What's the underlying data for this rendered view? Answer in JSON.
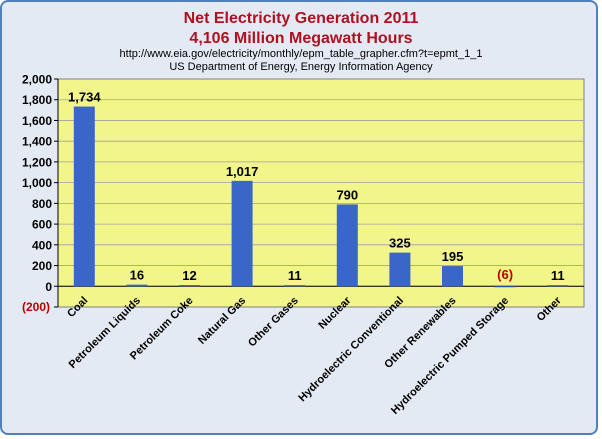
{
  "chart_data": {
    "type": "bar",
    "title": "Net Electricity Generation 2011",
    "subtitle": "4,106 Million Megawatt Hours",
    "source_url": "http://www.eia.gov/electricity/monthly/epm_table_grapher.cfm?t=epmt_1_1",
    "source_org": "US Department of Energy, Energy Information Agency",
    "categories": [
      "Coal",
      "Petroleum Liquids",
      "Petroleum Coke",
      "Natural Gas",
      "Other Gases",
      "Nuclear",
      "Hydroelectric Conventional",
      "Other Renewables",
      "Hydroelectric Pumped Storage",
      "Other"
    ],
    "values": [
      1734,
      16,
      12,
      1017,
      11,
      790,
      325,
      195,
      -6,
      11
    ],
    "value_labels": [
      "1,734",
      "16",
      "12",
      "1,017",
      "11",
      "790",
      "325",
      "195",
      "(6)",
      "11"
    ],
    "yticks": [
      -200,
      0,
      200,
      400,
      600,
      800,
      1000,
      1200,
      1400,
      1600,
      1800,
      2000
    ],
    "ytick_labels": [
      "(200)",
      "0",
      "200",
      "400",
      "600",
      "800",
      "1,000",
      "1,200",
      "1,400",
      "1,600",
      "1,800",
      "2,000"
    ],
    "ylim": [
      -200,
      2000
    ],
    "grid": true,
    "colors": {
      "bar": "#3a66c9",
      "plot_bg": "#f2f58a",
      "frame_bg": "#e4eaf4",
      "title": "#b01020",
      "negative_label": "#c00000",
      "grid": "#a0a0a0"
    }
  }
}
